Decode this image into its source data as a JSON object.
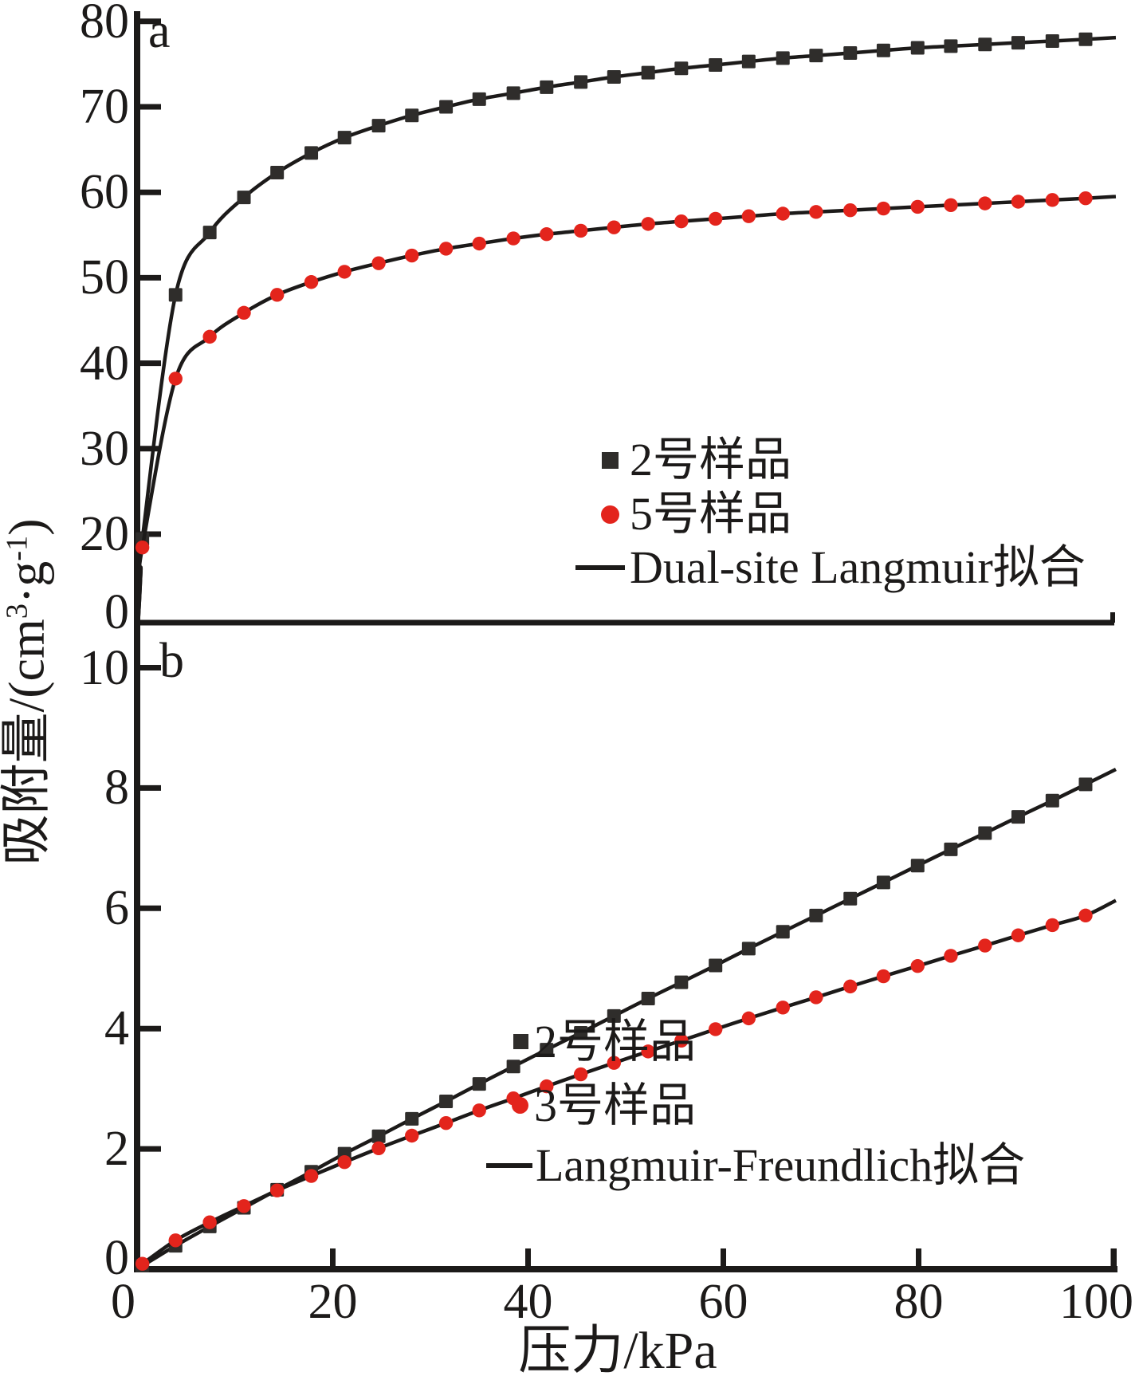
{
  "figure": {
    "x_axis": {
      "label": "压力/kPa",
      "tick_labels": [
        "0",
        "20",
        "40",
        "60",
        "80",
        "100"
      ],
      "tick_values": [
        0,
        20,
        40,
        60,
        80,
        100
      ],
      "range": [
        0,
        100
      ]
    },
    "y_axis": {
      "label_prefix": "吸附量/(cm",
      "label_sup1": "3",
      "label_mid": "·g",
      "label_sup2": "-1",
      "label_suffix": ")"
    },
    "panels": [
      {
        "id": "a",
        "letter": "a",
        "y_tick_labels": [
          "0",
          "20",
          "30",
          "40",
          "50",
          "60",
          "70",
          "80"
        ],
        "y_tick_values": [
          0,
          20,
          30,
          40,
          50,
          60,
          70,
          80
        ],
        "legend": [
          {
            "label": "2号样品",
            "marker": "square",
            "color": "#2f2d2b"
          },
          {
            "label": "5号样品",
            "marker": "circle",
            "color": "#e3241c"
          },
          {
            "label": "Dual-site Langmuir拟合",
            "marker": "line",
            "color": "#1c1a19"
          }
        ]
      },
      {
        "id": "b",
        "letter": "b",
        "y_tick_labels": [
          "0",
          "2",
          "4",
          "6",
          "8",
          "10"
        ],
        "y_tick_values": [
          0,
          2,
          4,
          6,
          8,
          10
        ],
        "legend": [
          {
            "label": "2号样品",
            "marker": "square",
            "color": "#2f2d2b"
          },
          {
            "label": "3号样品",
            "marker": "circle",
            "color": "#e3241c"
          },
          {
            "label": "Langmuir-Freundlich拟合",
            "marker": "line",
            "color": "#1c1a19"
          }
        ]
      }
    ]
  },
  "chart_data": [
    {
      "panel": "a",
      "type": "scatter",
      "fit_model": "Dual-site Langmuir拟合",
      "xlabel": "压力/kPa",
      "ylabel": "吸附量/(cm3·g-1)",
      "xlim": [
        0,
        100
      ],
      "ylim": [
        0,
        80
      ],
      "x": [
        0.5,
        3.9,
        7.4,
        10.9,
        14.3,
        17.8,
        21.2,
        24.7,
        28.1,
        31.6,
        35.0,
        38.5,
        41.9,
        45.4,
        48.8,
        52.3,
        55.7,
        59.2,
        62.6,
        66.1,
        69.5,
        73.0,
        76.4,
        79.9,
        83.3,
        86.8,
        90.2,
        93.7,
        97.1
      ],
      "series": [
        {
          "name": "2号样品",
          "marker": "square",
          "color": "#2f2d2b",
          "values": [
            18.9,
            48.0,
            55.3,
            59.4,
            62.3,
            64.6,
            66.4,
            67.8,
            69.0,
            70.0,
            70.9,
            71.6,
            72.3,
            72.9,
            73.5,
            74.0,
            74.5,
            74.9,
            75.3,
            75.7,
            76.0,
            76.3,
            76.6,
            76.9,
            77.1,
            77.3,
            77.5,
            77.7,
            77.9
          ]
        },
        {
          "name": "5号样品",
          "marker": "circle",
          "color": "#e3241c",
          "values": [
            17.0,
            38.2,
            43.1,
            45.9,
            48.0,
            49.5,
            50.7,
            51.7,
            52.6,
            53.4,
            54.0,
            54.6,
            55.1,
            55.5,
            55.9,
            56.3,
            56.6,
            56.9,
            57.2,
            57.5,
            57.7,
            57.9,
            58.1,
            58.3,
            58.5,
            58.7,
            58.9,
            59.1,
            59.3
          ]
        }
      ]
    },
    {
      "panel": "b",
      "type": "scatter",
      "fit_model": "Langmuir-Freundlich拟合",
      "xlabel": "压力/kPa",
      "ylabel": "吸附量/(cm3·g-1)",
      "xlim": [
        0,
        100
      ],
      "ylim": [
        0,
        10
      ],
      "x": [
        0.5,
        3.9,
        7.4,
        10.9,
        14.3,
        17.8,
        21.2,
        24.7,
        28.1,
        31.6,
        35.0,
        38.5,
        41.9,
        45.4,
        48.8,
        52.3,
        55.7,
        59.2,
        62.6,
        66.1,
        69.5,
        73.0,
        76.4,
        79.9,
        83.3,
        86.8,
        90.2,
        93.7,
        97.1
      ],
      "series": [
        {
          "name": "2号样品",
          "marker": "square",
          "color": "#2f2d2b",
          "values": [
            0.06,
            0.39,
            0.71,
            1.02,
            1.32,
            1.62,
            1.92,
            2.21,
            2.5,
            2.79,
            3.08,
            3.37,
            3.65,
            3.93,
            4.21,
            4.5,
            4.77,
            5.05,
            5.33,
            5.61,
            5.88,
            6.16,
            6.43,
            6.71,
            6.98,
            7.25,
            7.52,
            7.79,
            8.06
          ]
        },
        {
          "name": "3号样品",
          "marker": "circle",
          "color": "#e3241c",
          "values": [
            0.09,
            0.48,
            0.78,
            1.05,
            1.31,
            1.55,
            1.78,
            2.01,
            2.22,
            2.43,
            2.64,
            2.84,
            3.04,
            3.24,
            3.43,
            3.62,
            3.8,
            3.99,
            4.17,
            4.35,
            4.52,
            4.7,
            4.87,
            5.04,
            5.21,
            5.38,
            5.55,
            5.72,
            5.88
          ]
        }
      ]
    }
  ]
}
